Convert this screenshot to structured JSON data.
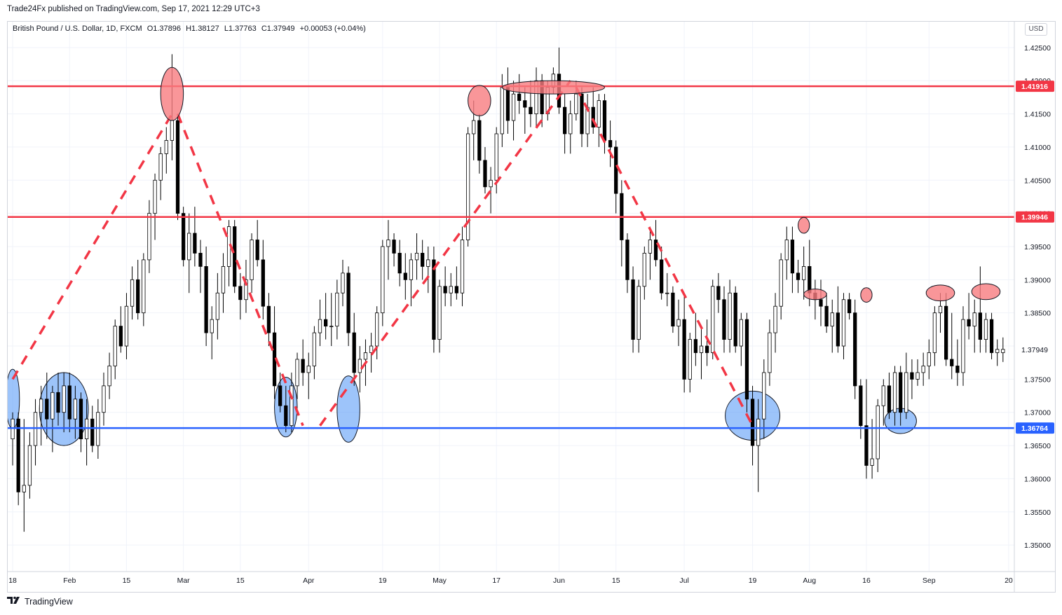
{
  "header": {
    "published": "Trade24Fx published on TradingView.com, Sep 17, 2021 12:29 UTC+3"
  },
  "legend": {
    "symbol": "British Pound / U.S. Dollar, 1D, FXCM",
    "open": "O1.37896",
    "high": "H1.38127",
    "low": "L1.37763",
    "close": "C1.37949",
    "change": "+0.00053 (+0.04%)"
  },
  "currency_badge": "USD",
  "footer": {
    "brand": "TradingView"
  },
  "colors": {
    "resistance": "#f23645",
    "support": "#2962ff",
    "bull_body": "#ffffff",
    "bear_body": "#000000",
    "highlight_red": "#f77c80",
    "highlight_blue": "#5b9cf6"
  },
  "chart_data": {
    "type": "candlestick",
    "title": "British Pound / U.S. Dollar, 1D, FXCM",
    "ylim": [
      1.346,
      1.429
    ],
    "y_ticks": [
      "1.42500",
      "1.42000",
      "1.41500",
      "1.41000",
      "1.40500",
      "1.40000",
      "1.39500",
      "1.39000",
      "1.38500",
      "1.38000",
      "1.37500",
      "1.37000",
      "1.36500",
      "1.36000",
      "1.35500",
      "1.35000"
    ],
    "y_tick_values": [
      1.425,
      1.42,
      1.415,
      1.41,
      1.405,
      1.4,
      1.395,
      1.39,
      1.385,
      1.38,
      1.375,
      1.37,
      1.365,
      1.36,
      1.355,
      1.35
    ],
    "x_ticks": [
      {
        "label": "18",
        "bar": 0
      },
      {
        "label": "Feb",
        "bar": 10
      },
      {
        "label": "15",
        "bar": 20
      },
      {
        "label": "Mar",
        "bar": 30
      },
      {
        "label": "15",
        "bar": 40
      },
      {
        "label": "Apr",
        "bar": 52
      },
      {
        "label": "19",
        "bar": 65
      },
      {
        "label": "May",
        "bar": 75
      },
      {
        "label": "17",
        "bar": 85
      },
      {
        "label": "Jun",
        "bar": 96
      },
      {
        "label": "15",
        "bar": 106
      },
      {
        "label": "Jul",
        "bar": 118
      },
      {
        "label": "19",
        "bar": 130
      },
      {
        "label": "Aug",
        "bar": 140
      },
      {
        "label": "16",
        "bar": 150
      },
      {
        "label": "Sep",
        "bar": 161
      },
      {
        "label": "20",
        "bar": 175
      }
    ],
    "levels": [
      {
        "name": "resistance-upper",
        "value": 1.41916,
        "label": "1.41916",
        "color": "#f23645"
      },
      {
        "name": "resistance-lower",
        "value": 1.39946,
        "label": "1.39946",
        "color": "#f23645"
      },
      {
        "name": "support",
        "value": 1.36764,
        "label": "1.36764",
        "color": "#2962ff"
      }
    ],
    "last_price": {
      "value": 1.37949,
      "label": "1.37949"
    },
    "bars_total": 176,
    "candles": [
      [
        1.366,
        1.37,
        1.362,
        1.369
      ],
      [
        1.369,
        1.37,
        1.356,
        1.358
      ],
      [
        1.358,
        1.369,
        1.352,
        1.359
      ],
      [
        1.359,
        1.367,
        1.357,
        1.365
      ],
      [
        1.365,
        1.372,
        1.362,
        1.37
      ],
      [
        1.37,
        1.374,
        1.365,
        1.372
      ],
      [
        1.372,
        1.376,
        1.366,
        1.369
      ],
      [
        1.369,
        1.374,
        1.364,
        1.373
      ],
      [
        1.373,
        1.376,
        1.368,
        1.37
      ],
      [
        1.37,
        1.376,
        1.367,
        1.374
      ],
      [
        1.374,
        1.376,
        1.367,
        1.369
      ],
      [
        1.369,
        1.374,
        1.366,
        1.372
      ],
      [
        1.372,
        1.373,
        1.364,
        1.366
      ],
      [
        1.366,
        1.372,
        1.362,
        1.369
      ],
      [
        1.369,
        1.371,
        1.364,
        1.365
      ],
      [
        1.365,
        1.372,
        1.363,
        1.37
      ],
      [
        1.37,
        1.376,
        1.368,
        1.374
      ],
      [
        1.374,
        1.379,
        1.372,
        1.377
      ],
      [
        1.377,
        1.384,
        1.375,
        1.383
      ],
      [
        1.383,
        1.386,
        1.379,
        1.38
      ],
      [
        1.38,
        1.388,
        1.378,
        1.386
      ],
      [
        1.386,
        1.392,
        1.384,
        1.39
      ],
      [
        1.39,
        1.393,
        1.384,
        1.385
      ],
      [
        1.385,
        1.394,
        1.383,
        1.393
      ],
      [
        1.393,
        1.402,
        1.391,
        1.4
      ],
      [
        1.4,
        1.406,
        1.396,
        1.405
      ],
      [
        1.405,
        1.41,
        1.402,
        1.409
      ],
      [
        1.409,
        1.413,
        1.406,
        1.411
      ],
      [
        1.411,
        1.424,
        1.408,
        1.414
      ],
      [
        1.414,
        1.415,
        1.399,
        1.4
      ],
      [
        1.4,
        1.401,
        1.392,
        1.393
      ],
      [
        1.393,
        1.4,
        1.388,
        1.397
      ],
      [
        1.397,
        1.401,
        1.392,
        1.394
      ],
      [
        1.394,
        1.396,
        1.388,
        1.392
      ],
      [
        1.392,
        1.395,
        1.38,
        1.382
      ],
      [
        1.382,
        1.386,
        1.378,
        1.384
      ],
      [
        1.384,
        1.391,
        1.381,
        1.388
      ],
      [
        1.388,
        1.394,
        1.385,
        1.392
      ],
      [
        1.392,
        1.399,
        1.389,
        1.398
      ],
      [
        1.398,
        1.399,
        1.388,
        1.389
      ],
      [
        1.389,
        1.391,
        1.384,
        1.387
      ],
      [
        1.387,
        1.393,
        1.385,
        1.39
      ],
      [
        1.39,
        1.397,
        1.388,
        1.396
      ],
      [
        1.396,
        1.399,
        1.392,
        1.393
      ],
      [
        1.393,
        1.396,
        1.384,
        1.386
      ],
      [
        1.386,
        1.388,
        1.38,
        1.382
      ],
      [
        1.382,
        1.386,
        1.372,
        1.374
      ],
      [
        1.374,
        1.376,
        1.37,
        1.371
      ],
      [
        1.371,
        1.374,
        1.367,
        1.368
      ],
      [
        1.368,
        1.376,
        1.367,
        1.374
      ],
      [
        1.374,
        1.379,
        1.372,
        1.378
      ],
      [
        1.378,
        1.381,
        1.374,
        1.376
      ],
      [
        1.376,
        1.379,
        1.372,
        1.377
      ],
      [
        1.377,
        1.383,
        1.375,
        1.382
      ],
      [
        1.382,
        1.387,
        1.38,
        1.384
      ],
      [
        1.384,
        1.388,
        1.381,
        1.383
      ],
      [
        1.383,
        1.388,
        1.38,
        1.383
      ],
      [
        1.383,
        1.39,
        1.381,
        1.388
      ],
      [
        1.388,
        1.393,
        1.386,
        1.391
      ],
      [
        1.391,
        1.392,
        1.38,
        1.382
      ],
      [
        1.382,
        1.385,
        1.374,
        1.376
      ],
      [
        1.376,
        1.38,
        1.373,
        1.378
      ],
      [
        1.378,
        1.381,
        1.374,
        1.379
      ],
      [
        1.379,
        1.382,
        1.376,
        1.38
      ],
      [
        1.38,
        1.386,
        1.378,
        1.385
      ],
      [
        1.385,
        1.396,
        1.383,
        1.395
      ],
      [
        1.395,
        1.399,
        1.39,
        1.396
      ],
      [
        1.396,
        1.397,
        1.392,
        1.394
      ],
      [
        1.394,
        1.396,
        1.389,
        1.391
      ],
      [
        1.391,
        1.394,
        1.387,
        1.39
      ],
      [
        1.39,
        1.394,
        1.386,
        1.393
      ],
      [
        1.393,
        1.397,
        1.39,
        1.394
      ],
      [
        1.394,
        1.396,
        1.39,
        1.392
      ],
      [
        1.392,
        1.395,
        1.388,
        1.393
      ],
      [
        1.393,
        1.395,
        1.379,
        1.381
      ],
      [
        1.381,
        1.39,
        1.379,
        1.389
      ],
      [
        1.389,
        1.392,
        1.386,
        1.388
      ],
      [
        1.388,
        1.391,
        1.386,
        1.389
      ],
      [
        1.389,
        1.392,
        1.387,
        1.388
      ],
      [
        1.388,
        1.398,
        1.386,
        1.396
      ],
      [
        1.396,
        1.413,
        1.395,
        1.412
      ],
      [
        1.412,
        1.417,
        1.408,
        1.414
      ],
      [
        1.414,
        1.415,
        1.406,
        1.408
      ],
      [
        1.408,
        1.41,
        1.403,
        1.404
      ],
      [
        1.404,
        1.407,
        1.4,
        1.405
      ],
      [
        1.405,
        1.413,
        1.403,
        1.412
      ],
      [
        1.412,
        1.421,
        1.41,
        1.419
      ],
      [
        1.419,
        1.422,
        1.412,
        1.414
      ],
      [
        1.414,
        1.42,
        1.411,
        1.418
      ],
      [
        1.418,
        1.421,
        1.415,
        1.417
      ],
      [
        1.417,
        1.419,
        1.412,
        1.416
      ],
      [
        1.416,
        1.42,
        1.413,
        1.415
      ],
      [
        1.415,
        1.422,
        1.413,
        1.42
      ],
      [
        1.42,
        1.421,
        1.413,
        1.415
      ],
      [
        1.415,
        1.42,
        1.414,
        1.419
      ],
      [
        1.419,
        1.422,
        1.418,
        1.421
      ],
      [
        1.421,
        1.425,
        1.415,
        1.416
      ],
      [
        1.416,
        1.418,
        1.409,
        1.412
      ],
      [
        1.412,
        1.417,
        1.409,
        1.415
      ],
      [
        1.415,
        1.42,
        1.414,
        1.418
      ],
      [
        1.418,
        1.419,
        1.41,
        1.412
      ],
      [
        1.412,
        1.418,
        1.41,
        1.416
      ],
      [
        1.416,
        1.419,
        1.412,
        1.413
      ],
      [
        1.413,
        1.418,
        1.41,
        1.417
      ],
      [
        1.417,
        1.418,
        1.409,
        1.411
      ],
      [
        1.411,
        1.414,
        1.407,
        1.41
      ],
      [
        1.41,
        1.411,
        1.4,
        1.403
      ],
      [
        1.403,
        1.405,
        1.392,
        1.396
      ],
      [
        1.396,
        1.397,
        1.388,
        1.39
      ],
      [
        1.39,
        1.392,
        1.379,
        1.381
      ],
      [
        1.381,
        1.39,
        1.379,
        1.389
      ],
      [
        1.389,
        1.395,
        1.387,
        1.394
      ],
      [
        1.394,
        1.398,
        1.39,
        1.396
      ],
      [
        1.396,
        1.399,
        1.392,
        1.393
      ],
      [
        1.393,
        1.395,
        1.387,
        1.388
      ],
      [
        1.388,
        1.391,
        1.386,
        1.388
      ],
      [
        1.388,
        1.389,
        1.382,
        1.383
      ],
      [
        1.383,
        1.387,
        1.38,
        1.384
      ],
      [
        1.384,
        1.388,
        1.373,
        1.375
      ],
      [
        1.375,
        1.382,
        1.373,
        1.381
      ],
      [
        1.381,
        1.385,
        1.377,
        1.379
      ],
      [
        1.379,
        1.383,
        1.375,
        1.38
      ],
      [
        1.38,
        1.384,
        1.377,
        1.379
      ],
      [
        1.379,
        1.39,
        1.378,
        1.389
      ],
      [
        1.389,
        1.391,
        1.385,
        1.387
      ],
      [
        1.387,
        1.389,
        1.379,
        1.381
      ],
      [
        1.381,
        1.39,
        1.379,
        1.388
      ],
      [
        1.388,
        1.389,
        1.379,
        1.38
      ],
      [
        1.38,
        1.385,
        1.377,
        1.384
      ],
      [
        1.384,
        1.385,
        1.37,
        1.372
      ],
      [
        1.372,
        1.374,
        1.362,
        1.365
      ],
      [
        1.365,
        1.372,
        1.358,
        1.369
      ],
      [
        1.369,
        1.378,
        1.366,
        1.376
      ],
      [
        1.376,
        1.384,
        1.374,
        1.382
      ],
      [
        1.382,
        1.388,
        1.379,
        1.386
      ],
      [
        1.386,
        1.394,
        1.384,
        1.393
      ],
      [
        1.393,
        1.398,
        1.39,
        1.396
      ],
      [
        1.396,
        1.398,
        1.388,
        1.391
      ],
      [
        1.391,
        1.393,
        1.388,
        1.39
      ],
      [
        1.39,
        1.395,
        1.387,
        1.392
      ],
      [
        1.392,
        1.396,
        1.386,
        1.388
      ],
      [
        1.388,
        1.39,
        1.384,
        1.387
      ],
      [
        1.387,
        1.39,
        1.383,
        1.386
      ],
      [
        1.386,
        1.388,
        1.382,
        1.383
      ],
      [
        1.383,
        1.387,
        1.379,
        1.385
      ],
      [
        1.385,
        1.389,
        1.379,
        1.38
      ],
      [
        1.38,
        1.388,
        1.378,
        1.387
      ],
      [
        1.387,
        1.388,
        1.384,
        1.385
      ],
      [
        1.385,
        1.387,
        1.372,
        1.374
      ],
      [
        1.374,
        1.375,
        1.366,
        1.368
      ],
      [
        1.368,
        1.375,
        1.36,
        1.362
      ],
      [
        1.362,
        1.369,
        1.36,
        1.363
      ],
      [
        1.363,
        1.372,
        1.361,
        1.371
      ],
      [
        1.371,
        1.375,
        1.368,
        1.374
      ],
      [
        1.374,
        1.376,
        1.369,
        1.37
      ],
      [
        1.37,
        1.377,
        1.368,
        1.376
      ],
      [
        1.376,
        1.377,
        1.368,
        1.37
      ],
      [
        1.37,
        1.379,
        1.369,
        1.376
      ],
      [
        1.376,
        1.378,
        1.372,
        1.375
      ],
      [
        1.375,
        1.378,
        1.374,
        1.376
      ],
      [
        1.376,
        1.379,
        1.374,
        1.377
      ],
      [
        1.377,
        1.381,
        1.375,
        1.379
      ],
      [
        1.379,
        1.386,
        1.377,
        1.385
      ],
      [
        1.385,
        1.388,
        1.382,
        1.386
      ],
      [
        1.386,
        1.388,
        1.377,
        1.378
      ],
      [
        1.378,
        1.385,
        1.375,
        1.377
      ],
      [
        1.377,
        1.381,
        1.374,
        1.376
      ],
      [
        1.376,
        1.386,
        1.374,
        1.384
      ],
      [
        1.384,
        1.388,
        1.381,
        1.383
      ],
      [
        1.383,
        1.387,
        1.379,
        1.385
      ],
      [
        1.385,
        1.392,
        1.379,
        1.381
      ],
      [
        1.381,
        1.385,
        1.379,
        1.384
      ],
      [
        1.384,
        1.385,
        1.378,
        1.379
      ],
      [
        1.379,
        1.381,
        1.377,
        1.3795
      ],
      [
        1.379,
        1.3813,
        1.3776,
        1.3795
      ]
    ],
    "trend_lines": [
      {
        "name": "rise-to-feb-high",
        "from": [
          0,
          1.375
        ],
        "to": [
          28,
          1.415
        ]
      },
      {
        "name": "fall-from-feb-high",
        "from": [
          29,
          1.415
        ],
        "to": [
          51,
          1.368
        ]
      },
      {
        "name": "rise-to-june-high",
        "from": [
          54,
          1.368
        ],
        "to": [
          98,
          1.42
        ]
      },
      {
        "name": "fall-from-june-high",
        "from": [
          99,
          1.419
        ],
        "to": [
          130,
          1.368
        ]
      }
    ],
    "highlights": [
      {
        "name": "feb-top",
        "color": "red",
        "bar": 28,
        "price": 1.418,
        "rx_bars": 2,
        "ry_price": 0.004
      },
      {
        "name": "may-top",
        "color": "red",
        "bar": 82,
        "price": 1.417,
        "rx_bars": 2,
        "ry_price": 0.0023
      },
      {
        "name": "june-range-top",
        "color": "red",
        "bar": 95,
        "price": 1.419,
        "rx_bars": 9,
        "ry_price": 0.001
      },
      {
        "name": "july-spike",
        "color": "red",
        "bar": 139,
        "price": 1.3982,
        "rx_bars": 1,
        "ry_price": 0.0012
      },
      {
        "name": "aug-lower-high",
        "color": "red",
        "bar": 141,
        "price": 1.3878,
        "rx_bars": 2,
        "ry_price": 0.0008
      },
      {
        "name": "aug-top",
        "color": "red",
        "bar": 150,
        "price": 1.3877,
        "rx_bars": 1,
        "ry_price": 0.0011
      },
      {
        "name": "sep-top-1",
        "color": "red",
        "bar": 163,
        "price": 1.388,
        "rx_bars": 2.5,
        "ry_price": 0.0012
      },
      {
        "name": "sep-top-2",
        "color": "red",
        "bar": 171,
        "price": 1.3882,
        "rx_bars": 2.5,
        "ry_price": 0.0012
      },
      {
        "name": "jan-low",
        "color": "blue",
        "bar": 0,
        "price": 1.372,
        "rx_bars": 1.2,
        "ry_price": 0.0045
      },
      {
        "name": "feb-support",
        "color": "blue",
        "bar": 9,
        "price": 1.3705,
        "rx_bars": 4.3,
        "ry_price": 0.0055
      },
      {
        "name": "mar-support",
        "color": "blue",
        "bar": 48,
        "price": 1.3708,
        "rx_bars": 2,
        "ry_price": 0.0045
      },
      {
        "name": "apr-support",
        "color": "blue",
        "bar": 59,
        "price": 1.3705,
        "rx_bars": 2,
        "ry_price": 0.005
      },
      {
        "name": "jul-support",
        "color": "blue",
        "bar": 130,
        "price": 1.3695,
        "rx_bars": 4.8,
        "ry_price": 0.0037
      },
      {
        "name": "aug-support",
        "color": "blue",
        "bar": 156,
        "price": 1.3687,
        "rx_bars": 2.8,
        "ry_price": 0.0019
      }
    ]
  }
}
